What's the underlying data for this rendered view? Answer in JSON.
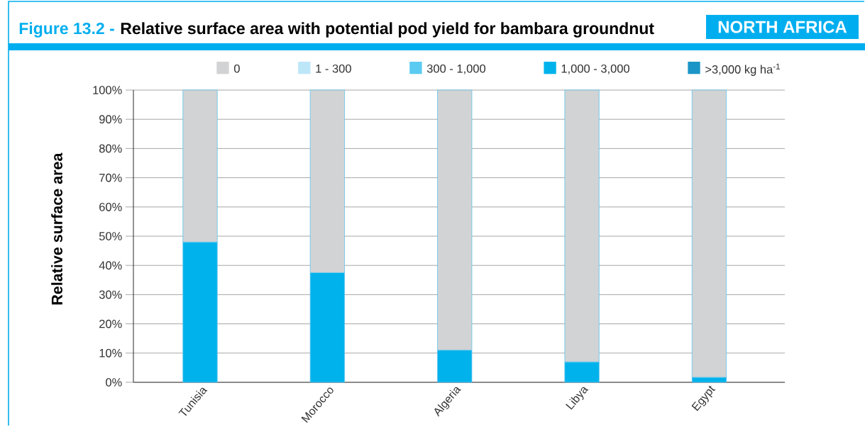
{
  "chart_data": {
    "type": "bar",
    "title": "Relative surface area with potential pod yield for bambara groundnut",
    "ylabel": "Relative surface area",
    "annotations": [
      "Figure 13.2 -",
      "NORTH AFRICA"
    ],
    "categories": [
      "Tunisia",
      "Morocco",
      "Algeria",
      "Libya",
      "Egypt"
    ],
    "stacked": true,
    "series": [
      {
        "name": ">3,000 kg ha$^{-1}$",
        "color": "#1a95c6",
        "values": [
          0,
          0,
          0,
          0,
          0
        ]
      },
      {
        "name": "1,000 - 3,000",
        "color": "#00b2ec",
        "values": [
          48,
          37.5,
          11,
          7,
          1.7
        ]
      },
      {
        "name": "300 - 1,000",
        "color": "#5ccbf2",
        "values": [
          0,
          0,
          0,
          0,
          0
        ]
      },
      {
        "name": "1 - 300",
        "color": "#bde6f9",
        "values": [
          0,
          0,
          0,
          0,
          0
        ]
      },
      {
        "name": "0",
        "color": "#d1d3d4",
        "values": [
          52,
          62.5,
          89,
          93,
          98.3
        ]
      }
    ],
    "ylim": [
      0,
      100
    ],
    "yticks": [
      {
        "value": 0,
        "label": "0%"
      },
      {
        "value": 10,
        "label": "10%"
      },
      {
        "value": 20,
        "label": "20%"
      },
      {
        "value": 30,
        "label": "30%"
      },
      {
        "value": 40,
        "label": "40%"
      },
      {
        "value": 50,
        "label": "50%"
      },
      {
        "value": 60,
        "label": "60%"
      },
      {
        "value": 70,
        "label": "70%"
      },
      {
        "value": 80,
        "label": "80%"
      },
      {
        "value": 90,
        "label": "90%"
      },
      {
        "value": 100,
        "label": "100%"
      }
    ],
    "grid": "y",
    "legend": "top"
  }
}
